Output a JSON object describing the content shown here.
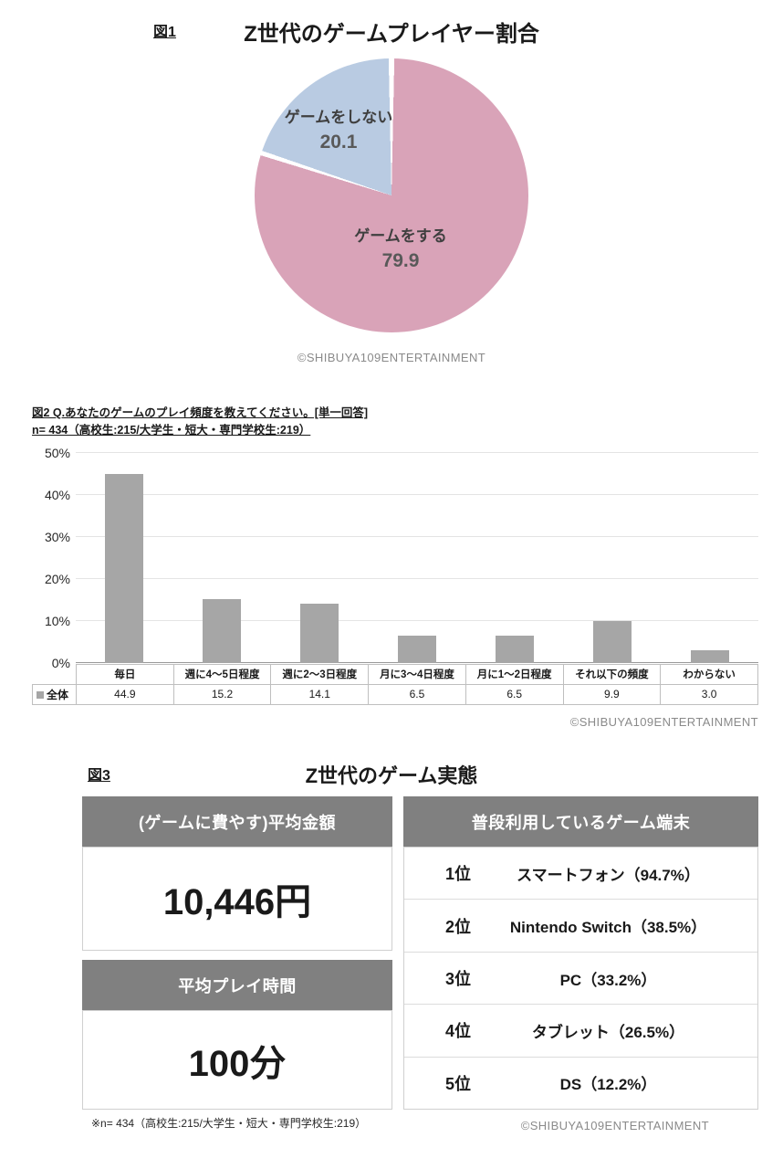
{
  "fig1": {
    "label": "図1",
    "title": "Z世代のゲームプレイヤー割合",
    "copyright": "©SHIBUYA109ENTERTAINMENT"
  },
  "fig2": {
    "heading_line1": "図2 Q.あなたのゲームのプレイ頻度を教えてください。[単一回答]",
    "heading_line2": "n= 434（高校生:215/大学生・短大・専門学校生:219）",
    "copyright": "©SHIBUYA109ENTERTAINMENT"
  },
  "fig3": {
    "label": "図3",
    "title": "Z世代のゲーム実態",
    "header_bg": "#808080",
    "money_header": "(ゲームに費やす)平均金額",
    "money_value": "10,446円",
    "time_header": "平均プレイ時間",
    "time_value": "100分",
    "device_header": "普段利用しているゲーム端末",
    "devices": [
      {
        "rank": "1位",
        "label": "スマートフォン（94.7%）"
      },
      {
        "rank": "2位",
        "label": "Nintendo Switch（38.5%）"
      },
      {
        "rank": "3位",
        "label": "PC（33.2%）"
      },
      {
        "rank": "4位",
        "label": "タブレット（26.5%）"
      },
      {
        "rank": "5位",
        "label": "DS（12.2%）"
      }
    ],
    "footnote": "※n= 434（高校生:215/大学生・短大・専門学校生:219）",
    "copyright": "©SHIBUYA109ENTERTAINMENT"
  },
  "chart_data": [
    {
      "type": "pie",
      "title": "Z世代のゲームプレイヤー割合",
      "labels": [
        "ゲームをする",
        "ゲームをしない"
      ],
      "values": [
        79.9,
        20.1
      ],
      "display": [
        "79.9",
        "20.1"
      ],
      "colors": [
        "#d9a3b8",
        "#b9cbe2"
      ],
      "start_angle_deg": 0,
      "direction": "clockwise",
      "legend_position": "none"
    },
    {
      "type": "bar",
      "title": "図2 Q.あなたのゲームのプレイ頻度を教えてください。[単一回答]",
      "subtitle": "n= 434（高校生:215/大学生・短大・専門学校生:219）",
      "categories": [
        "毎日",
        "週に4～5日程度",
        "週に2～3日程度",
        "月に3～4日程度",
        "月に1～2日程度",
        "それ以下の頻度",
        "わからない"
      ],
      "series": [
        {
          "name": "全体",
          "values": [
            44.9,
            15.2,
            14.1,
            6.5,
            6.5,
            9.9,
            3.0
          ],
          "display": [
            "44.9",
            "15.2",
            "14.1",
            "6.5",
            "6.5",
            "9.9",
            "3.0"
          ]
        }
      ],
      "ylim": [
        0,
        50
      ],
      "ytick_step": 10,
      "ytick_labels": [
        "0%",
        "10%",
        "20%",
        "30%",
        "40%",
        "50%"
      ],
      "bar_color": "#a6a6a6",
      "grid": true,
      "legend_position": "bottom-table"
    }
  ]
}
